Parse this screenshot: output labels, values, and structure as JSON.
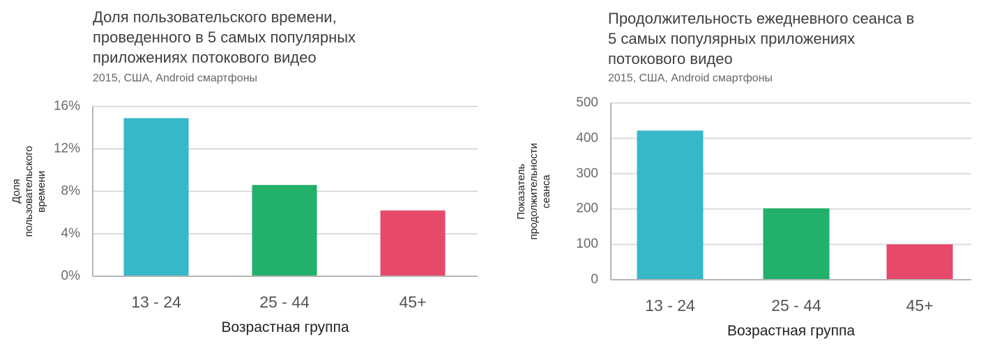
{
  "chart_data": [
    {
      "type": "bar",
      "title": "Доля пользовательского времени,\nпроведенного в 5 самых популярных\nприложениях потокового видео",
      "subtitle": "2015, США, Android смартфоны",
      "xlabel": "Возрастная группа",
      "ylabel": "Доля пользовательского времени",
      "categories": [
        "13 - 24",
        "25 - 44",
        "45+"
      ],
      "values": [
        14.9,
        8.6,
        6.2
      ],
      "colors": [
        "#36b8c8",
        "#22b06b",
        "#e6496a"
      ],
      "ylim": [
        0,
        16
      ],
      "yticks": [
        0,
        4,
        8,
        12,
        16
      ],
      "ytick_labels": [
        "0%",
        "4%",
        "8%",
        "12%",
        "16%"
      ],
      "grid": true,
      "legend": "none"
    },
    {
      "type": "bar",
      "title": "Продолжительность ежедневного сеанса в\n5 самых популярных приложениях\nпотокового видео",
      "subtitle": "2015, США, Android смартфоны",
      "xlabel": "Возрастная группа",
      "ylabel": "Показатель\nпродолжительности сеанса",
      "categories": [
        "13 - 24",
        "25 - 44",
        "45+"
      ],
      "values": [
        422,
        202,
        100
      ],
      "colors": [
        "#36b8c8",
        "#22b06b",
        "#e6496a"
      ],
      "ylim": [
        0,
        500
      ],
      "yticks": [
        0,
        100,
        200,
        300,
        400,
        500
      ],
      "ytick_labels": [
        "0",
        "100",
        "200",
        "300",
        "400",
        "500"
      ],
      "grid": true,
      "legend": "none"
    }
  ]
}
